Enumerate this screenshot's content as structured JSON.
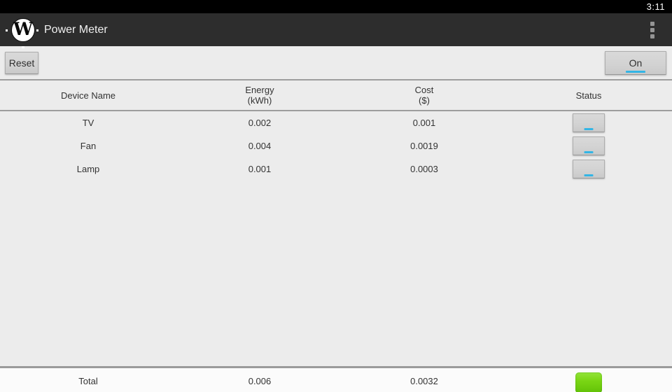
{
  "status_bar": {
    "time": "3:11"
  },
  "action_bar": {
    "title": "Power Meter",
    "logo_letter": "W"
  },
  "toolbar": {
    "reset_label": "Reset",
    "power_toggle_label": "On",
    "power_toggle_state": "on"
  },
  "table": {
    "headers": [
      {
        "line1": "Device Name",
        "line2": ""
      },
      {
        "line1": "Energy",
        "line2": "(kWh)"
      },
      {
        "line1": "Cost",
        "line2": "($)"
      },
      {
        "line1": "Status",
        "line2": ""
      }
    ],
    "rows": [
      {
        "device": "TV",
        "energy": "0.002",
        "cost": "0.001",
        "toggle_label": "",
        "toggle_state": "on"
      },
      {
        "device": "Fan",
        "energy": "0.004",
        "cost": "0.0019",
        "toggle_label": "",
        "toggle_state": "on"
      },
      {
        "device": "Lamp",
        "energy": "0.001",
        "cost": "0.0003",
        "toggle_label": "",
        "toggle_state": "on"
      }
    ],
    "total": {
      "label": "Total",
      "energy": "0.006",
      "cost": "0.0032",
      "indicator": "green"
    }
  },
  "colors": {
    "holo_blue": "#33b5e5",
    "indicator_green": "#7ad614",
    "action_bar_bg": "#2d2d2d",
    "content_bg": "#ececec"
  }
}
